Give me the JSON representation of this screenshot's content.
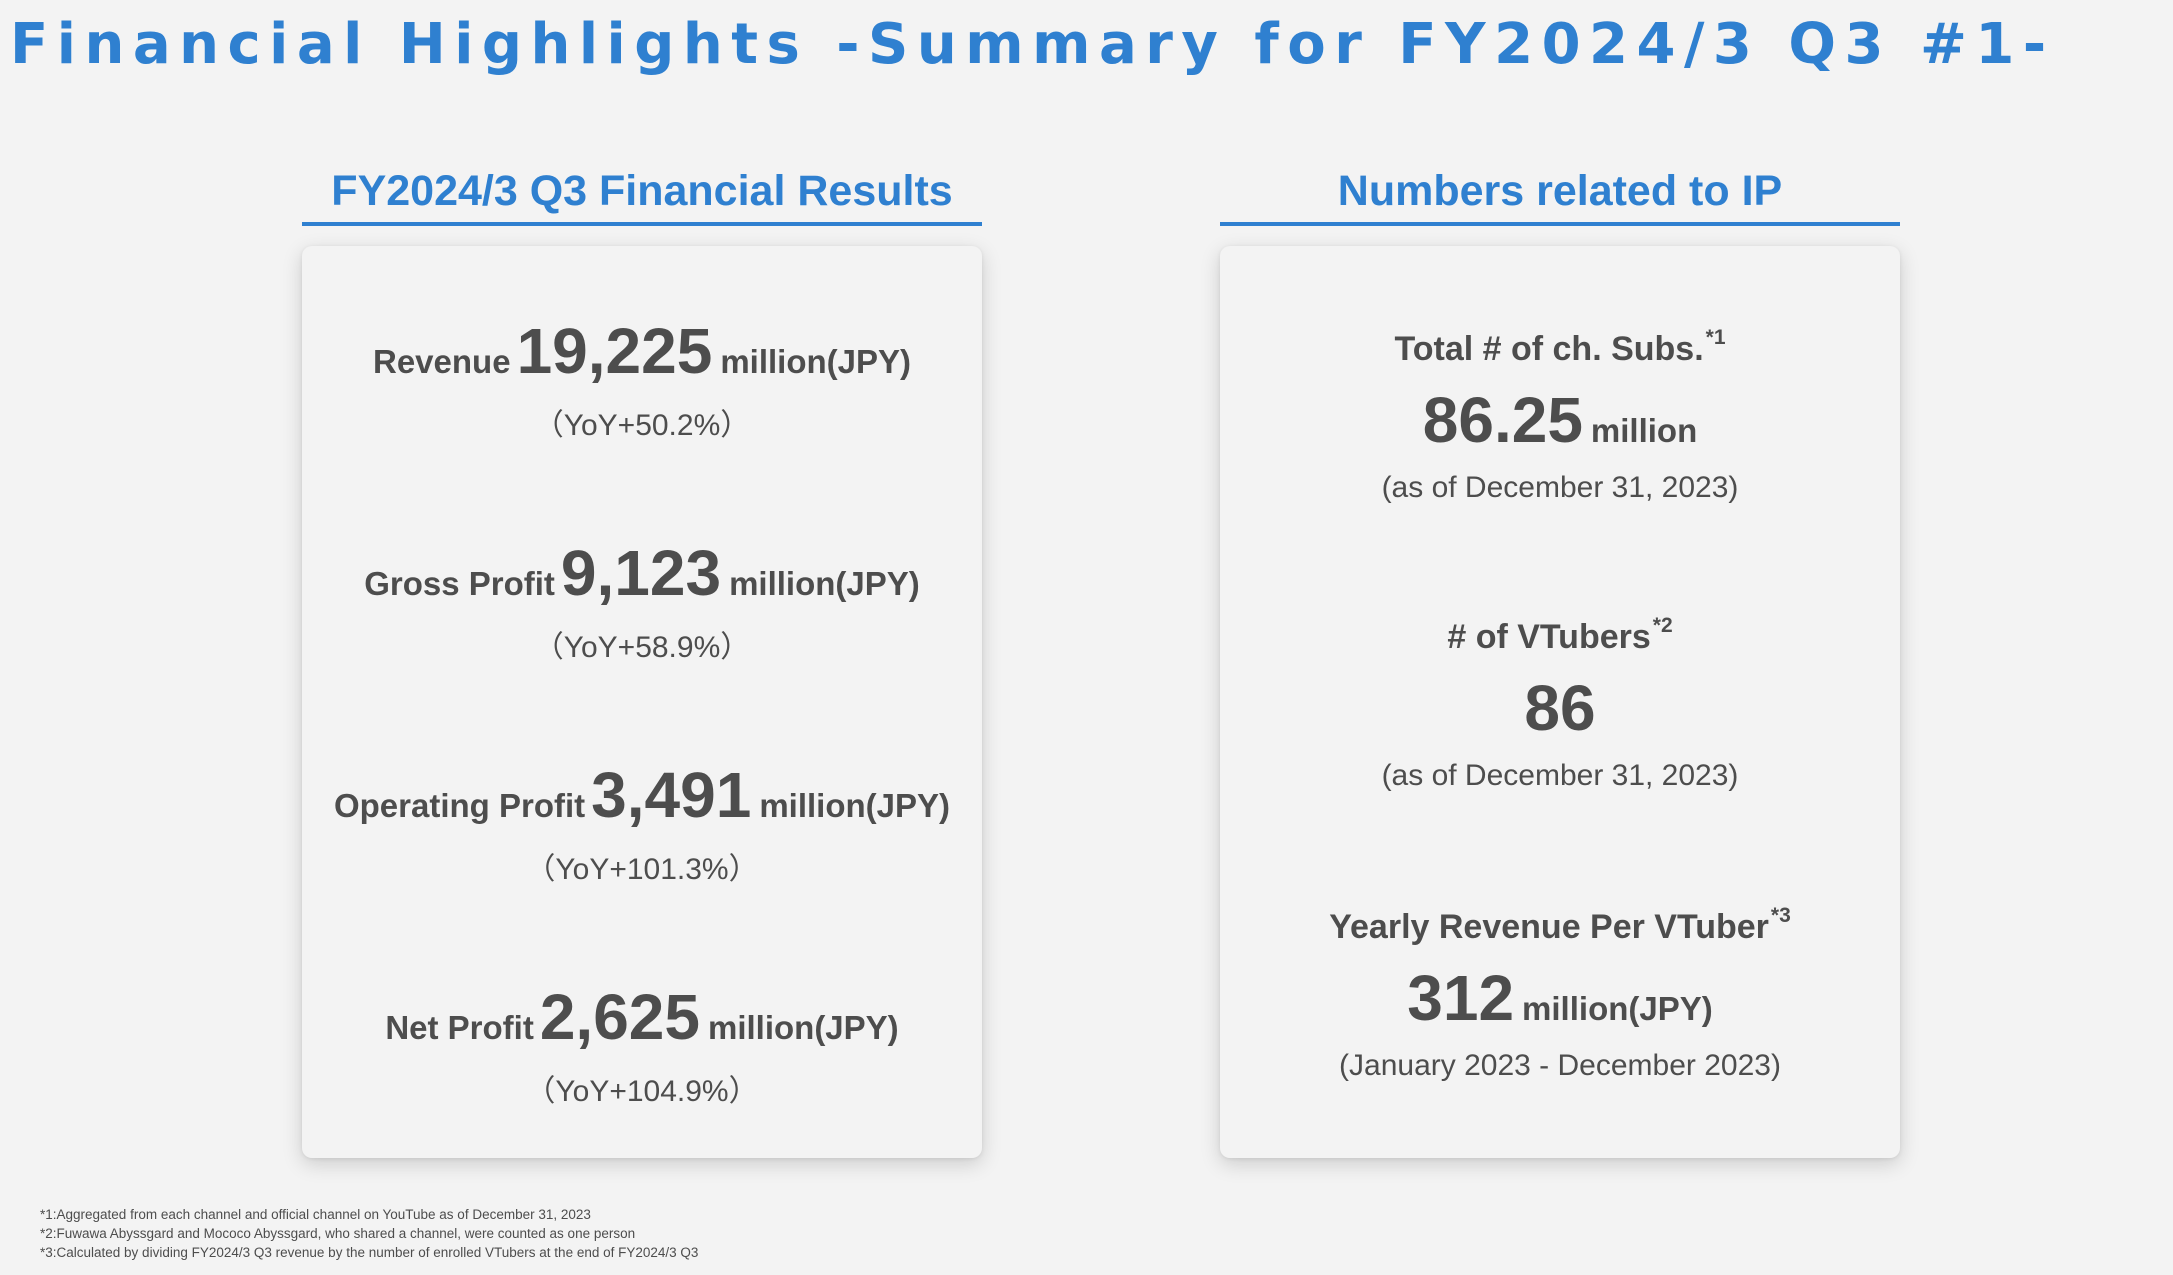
{
  "title": "Financial Highlights -Summary for FY2024/3 Q3 #1-",
  "financial": {
    "heading": "FY2024/3 Q3 Financial Results",
    "metrics": [
      {
        "label": "Revenue",
        "value": "19,225",
        "unit": "million(JPY)",
        "yoy": "（YoY+50.2%）"
      },
      {
        "label": "Gross Profit",
        "value": "9,123",
        "unit": "million(JPY)",
        "yoy": "（YoY+58.9%）"
      },
      {
        "label": "Operating Profit",
        "value": "3,491",
        "unit": "million(JPY)",
        "yoy": "（YoY+101.3%）"
      },
      {
        "label": "Net Profit",
        "value": "2,625",
        "unit": "million(JPY)",
        "yoy": "（YoY+104.9%）"
      }
    ]
  },
  "ip": {
    "heading": "Numbers related to IP",
    "items": [
      {
        "label": "Total # of ch. Subs.",
        "sup": "*1",
        "value": "86.25",
        "unit": "million",
        "note": "(as of December 31, 2023)"
      },
      {
        "label": "# of VTubers",
        "sup": "*2",
        "value": "86",
        "unit": "",
        "note": "(as of December 31, 2023)"
      },
      {
        "label": "Yearly Revenue Per VTuber",
        "sup": "*3",
        "value": "312",
        "unit": "million(JPY)",
        "note": "(January 2023 - December 2023)"
      }
    ]
  },
  "footnotes": [
    "*1:Aggregated from each channel and official channel on YouTube as of December 31, 2023",
    "*2:Fuwawa Abyssgard and Mococo Abyssgard, who shared a channel, were counted as one person",
    "*3:Calculated by dividing FY2024/3 Q3 revenue by the number of enrolled VTubers at the end of FY2024/3 Q3"
  ],
  "colors": {
    "accent": "#2f80d0",
    "text": "#4d4d4d",
    "background": "#f3f3f3"
  }
}
